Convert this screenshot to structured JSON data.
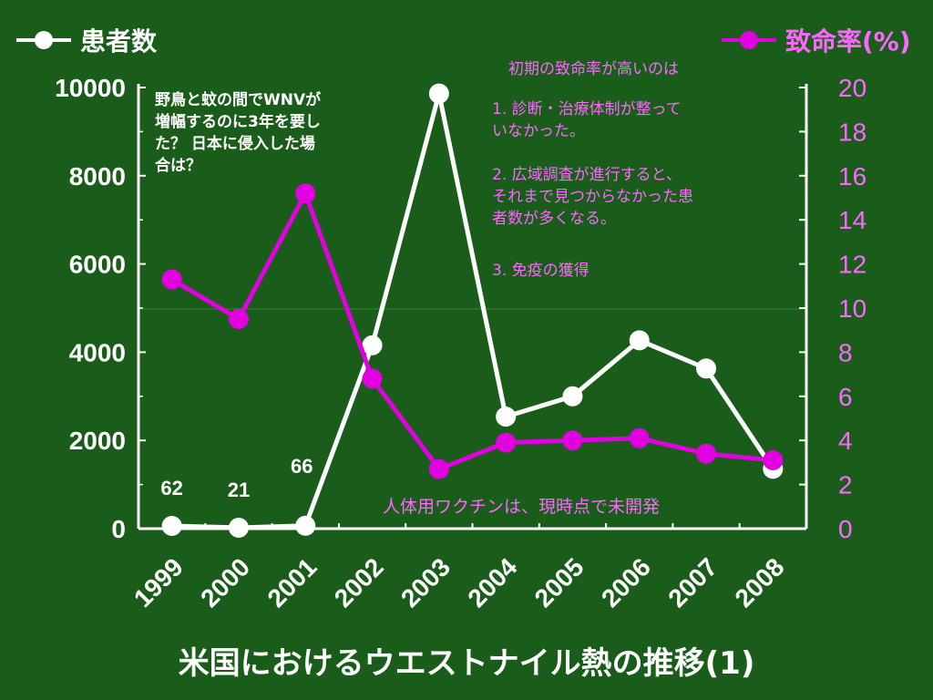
{
  "chart_data": {
    "type": "line",
    "title": "米国におけるウエストナイル熱の推移(1)",
    "categories": [
      "1999",
      "2000",
      "2001",
      "2002",
      "2003",
      "2004",
      "2005",
      "2006",
      "2007",
      "2008"
    ],
    "series": [
      {
        "name": "患者数",
        "axis": "left",
        "color": "#ffffff",
        "values": [
          62,
          21,
          66,
          4156,
          9862,
          2539,
          3000,
          4269,
          3630,
          1356
        ],
        "data_labels": [
          "62",
          "21",
          "66",
          "",
          "",
          "",
          "",
          "",
          "",
          ""
        ]
      },
      {
        "name": "致命率(%)",
        "axis": "right",
        "color": "#e000e0",
        "values": [
          11.3,
          9.5,
          15.2,
          6.8,
          2.7,
          3.9,
          4.0,
          4.1,
          3.4,
          3.1
        ]
      }
    ],
    "y_left": {
      "min": 0,
      "max": 10000,
      "ticks": [
        "0",
        "2000",
        "4000",
        "6000",
        "8000",
        "10000"
      ]
    },
    "y_right": {
      "min": 0,
      "max": 20,
      "ticks": [
        "0",
        "2",
        "4",
        "6",
        "8",
        "10",
        "12",
        "14",
        "16",
        "18",
        "20"
      ]
    },
    "grid": false,
    "legend_placement": "top"
  },
  "colors": {
    "background": "#1a5c1a",
    "patients": "#ffffff",
    "fatality": "#e000e0",
    "fatality_text": "#ff66ff"
  },
  "legend": {
    "patients_label": "患者数",
    "fatality_label": "致命率(%)"
  },
  "annotations": {
    "left_note": "野鳥と蚊の間でWNVが\n増幅するのに3年を要し\nた？ 日本に侵入した場\n合は？",
    "right_title": "初期の致命率が高いのは",
    "right_1": "1.  診断・治療体制が整って\nいなかった。",
    "right_2": "2.  広域調査が進行すると、\nそれまで見つからなかった患\n者数が多くなる。",
    "right_3": "3.  免疫の獲得",
    "bottom_note": "人体用ワクチンは、現時点で未開発"
  }
}
